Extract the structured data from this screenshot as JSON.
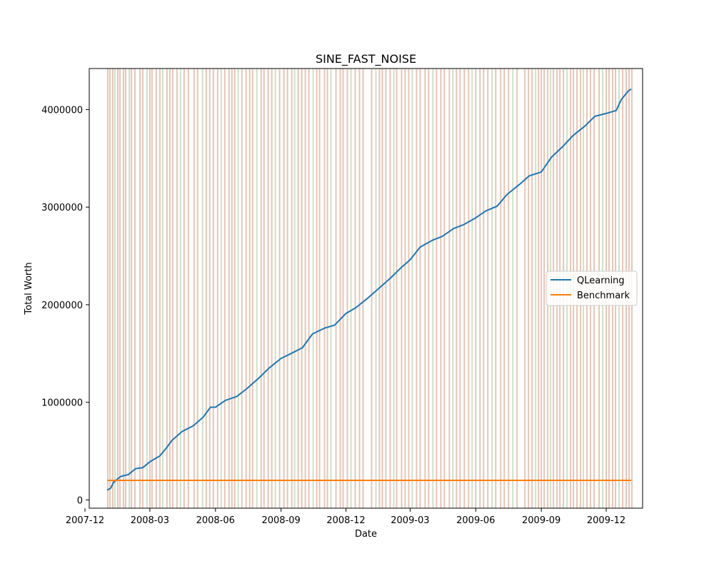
{
  "chart_data": {
    "type": "line",
    "title": "SINE_FAST_NOISE",
    "xlabel": "Date",
    "ylabel": "Total Worth",
    "x_range": [
      "2007-12-07",
      "2010-01-21"
    ],
    "ylim": [
      -85000,
      4420000
    ],
    "x_ticks": [
      {
        "date": "2007-12-01",
        "label": "2007-12"
      },
      {
        "date": "2008-03-01",
        "label": "2008-03"
      },
      {
        "date": "2008-06-01",
        "label": "2008-06"
      },
      {
        "date": "2008-09-01",
        "label": "2008-09"
      },
      {
        "date": "2008-12-01",
        "label": "2008-12"
      },
      {
        "date": "2009-03-01",
        "label": "2009-03"
      },
      {
        "date": "2009-06-01",
        "label": "2009-06"
      },
      {
        "date": "2009-09-01",
        "label": "2009-09"
      },
      {
        "date": "2009-12-01",
        "label": "2009-12"
      }
    ],
    "y_ticks": [
      {
        "value": 0,
        "label": "0"
      },
      {
        "value": 1000000,
        "label": "1000000"
      },
      {
        "value": 2000000,
        "label": "2000000"
      },
      {
        "value": 3000000,
        "label": "3000000"
      },
      {
        "value": 4000000,
        "label": "4000000"
      }
    ],
    "legend_position": "center-right",
    "grid": false,
    "series": [
      {
        "name": "QLearning",
        "color": "#1f77b4",
        "points": [
          [
            "2008-01-01",
            100000
          ],
          [
            "2008-01-06",
            120000
          ],
          [
            "2008-01-10",
            180000
          ],
          [
            "2008-01-20",
            240000
          ],
          [
            "2008-01-31",
            260000
          ],
          [
            "2008-02-10",
            320000
          ],
          [
            "2008-02-20",
            330000
          ],
          [
            "2008-03-01",
            390000
          ],
          [
            "2008-03-15",
            450000
          ],
          [
            "2008-03-25",
            540000
          ],
          [
            "2008-04-01",
            610000
          ],
          [
            "2008-04-15",
            700000
          ],
          [
            "2008-05-01",
            760000
          ],
          [
            "2008-05-15",
            850000
          ],
          [
            "2008-05-25",
            950000
          ],
          [
            "2008-06-01",
            950000
          ],
          [
            "2008-06-15",
            1020000
          ],
          [
            "2008-07-01",
            1060000
          ],
          [
            "2008-07-15",
            1140000
          ],
          [
            "2008-08-01",
            1250000
          ],
          [
            "2008-08-15",
            1350000
          ],
          [
            "2008-09-01",
            1450000
          ],
          [
            "2008-09-15",
            1500000
          ],
          [
            "2008-10-01",
            1560000
          ],
          [
            "2008-10-15",
            1700000
          ],
          [
            "2008-11-01",
            1760000
          ],
          [
            "2008-11-15",
            1790000
          ],
          [
            "2008-12-01",
            1910000
          ],
          [
            "2008-12-15",
            1970000
          ],
          [
            "2009-01-01",
            2070000
          ],
          [
            "2009-01-15",
            2160000
          ],
          [
            "2009-02-01",
            2270000
          ],
          [
            "2009-02-15",
            2370000
          ],
          [
            "2009-03-01",
            2460000
          ],
          [
            "2009-03-15",
            2590000
          ],
          [
            "2009-04-01",
            2660000
          ],
          [
            "2009-04-15",
            2700000
          ],
          [
            "2009-05-01",
            2780000
          ],
          [
            "2009-05-15",
            2820000
          ],
          [
            "2009-06-01",
            2890000
          ],
          [
            "2009-06-15",
            2960000
          ],
          [
            "2009-07-01",
            3010000
          ],
          [
            "2009-07-15",
            3130000
          ],
          [
            "2009-08-01",
            3230000
          ],
          [
            "2009-08-15",
            3320000
          ],
          [
            "2009-09-01",
            3360000
          ],
          [
            "2009-09-15",
            3510000
          ],
          [
            "2009-10-01",
            3620000
          ],
          [
            "2009-10-15",
            3730000
          ],
          [
            "2009-11-01",
            3830000
          ],
          [
            "2009-11-15",
            3930000
          ],
          [
            "2009-12-01",
            3960000
          ],
          [
            "2009-12-15",
            3990000
          ],
          [
            "2009-12-22",
            4100000
          ],
          [
            "2010-01-01",
            4190000
          ],
          [
            "2010-01-05",
            4210000
          ]
        ]
      },
      {
        "name": "Benchmark",
        "color": "#ff7f0e",
        "points": [
          [
            "2008-01-01",
            200000
          ],
          [
            "2010-01-05",
            200000
          ]
        ]
      }
    ],
    "signal_lines": {
      "colors": [
        "#d08b6d",
        "#9fc18f"
      ],
      "dates": [
        "2008-01-02",
        "2008-01-05",
        "2008-01-09",
        "2008-01-12",
        "2008-01-16",
        "2008-01-19",
        "2008-01-24",
        "2008-01-27",
        "2008-02-01",
        "2008-02-04",
        "2008-02-09",
        "2008-02-16",
        "2008-02-20",
        "2008-02-26",
        "2008-03-01",
        "2008-03-04",
        "2008-03-10",
        "2008-03-15",
        "2008-03-19",
        "2008-03-25",
        "2008-03-29",
        "2008-04-02",
        "2008-04-08",
        "2008-04-13",
        "2008-04-18",
        "2008-04-24",
        "2008-05-02",
        "2008-05-07",
        "2008-05-14",
        "2008-05-19",
        "2008-05-24",
        "2008-05-29",
        "2008-06-04",
        "2008-06-09",
        "2008-06-14",
        "2008-06-20",
        "2008-06-24",
        "2008-06-28",
        "2008-07-03",
        "2008-07-08",
        "2008-07-14",
        "2008-07-19",
        "2008-07-23",
        "2008-07-29",
        "2008-08-04",
        "2008-08-08",
        "2008-08-14",
        "2008-08-19",
        "2008-08-24",
        "2008-08-30",
        "2008-09-05",
        "2008-09-10",
        "2008-09-16",
        "2008-09-20",
        "2008-09-25",
        "2008-09-30",
        "2008-10-05",
        "2008-10-10",
        "2008-10-16",
        "2008-10-21",
        "2008-10-25",
        "2008-11-01",
        "2008-11-05",
        "2008-11-10",
        "2008-11-17",
        "2008-11-23",
        "2008-11-27",
        "2008-12-03",
        "2008-12-08",
        "2008-12-14",
        "2008-12-20",
        "2008-12-25",
        "2009-01-06",
        "2009-01-12",
        "2009-01-17",
        "2009-01-21",
        "2009-01-26",
        "2009-02-01",
        "2009-02-06",
        "2009-02-10",
        "2009-02-17",
        "2009-02-22",
        "2009-02-27",
        "2009-03-04",
        "2009-03-10",
        "2009-03-15",
        "2009-03-22",
        "2009-03-27",
        "2009-04-02",
        "2009-04-07",
        "2009-04-13",
        "2009-04-18",
        "2009-04-25",
        "2009-04-30",
        "2009-05-05",
        "2009-05-10",
        "2009-05-16",
        "2009-05-22",
        "2009-05-27",
        "2009-06-01",
        "2009-06-07",
        "2009-06-12",
        "2009-06-18",
        "2009-06-24",
        "2009-06-29",
        "2009-07-06",
        "2009-07-11",
        "2009-07-17",
        "2009-07-23",
        "2009-07-29",
        "2009-08-09",
        "2009-08-14",
        "2009-08-19",
        "2009-08-24",
        "2009-08-28",
        "2009-09-01",
        "2009-09-05",
        "2009-09-10",
        "2009-09-14",
        "2009-09-18",
        "2009-09-23",
        "2009-09-27",
        "2009-10-02",
        "2009-10-07",
        "2009-10-12",
        "2009-10-16",
        "2009-10-21",
        "2009-10-26",
        "2009-10-30",
        "2009-11-04",
        "2009-11-09",
        "2009-11-14",
        "2009-11-21",
        "2009-11-26",
        "2009-12-01",
        "2009-12-05",
        "2009-12-10",
        "2009-12-14",
        "2009-12-19",
        "2009-12-24",
        "2009-12-29",
        "2010-01-02",
        "2010-01-06"
      ]
    }
  }
}
